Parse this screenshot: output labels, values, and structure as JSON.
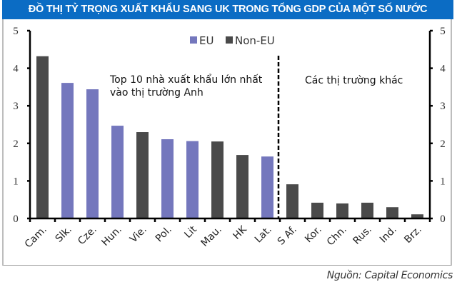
{
  "header": {
    "title": "ĐỒ THỊ TỶ TRỌNG XUẤT KHẨU SANG UK TRONG TỔNG GDP CỦA MỘT SỐ NƯỚC"
  },
  "source": "Nguồn: Capital Economics",
  "colors": {
    "eu": "#7477bd",
    "non_eu": "#4a4a4a",
    "header": "#0b6cc4"
  },
  "chart_data": {
    "type": "bar",
    "title": "ĐỒ THỊ TỶ TRỌNG XUẤT KHẨU SANG UK TRONG TỔNG GDP CỦA MỘT SỐ NƯỚC",
    "xlabel": "",
    "ylabel": "",
    "ylim": [
      0,
      5
    ],
    "yticks": [
      0,
      1,
      2,
      3,
      4,
      5
    ],
    "grid": false,
    "legend": {
      "position": "top-center",
      "entries": [
        "EU",
        "Non-EU"
      ]
    },
    "categories": [
      "Cam.",
      "Slk.",
      "Cze.",
      "Hun.",
      "Vie.",
      "Pol.",
      "Lit",
      "Mau.",
      "HK",
      "Lat.",
      "S Af.",
      "Kor.",
      "Chn.",
      "Rus.",
      "Ind.",
      "Brz."
    ],
    "values": [
      4.32,
      3.61,
      3.44,
      2.47,
      2.3,
      2.11,
      2.06,
      2.05,
      1.69,
      1.65,
      0.91,
      0.42,
      0.4,
      0.42,
      0.3,
      0.11
    ],
    "groups": [
      "Non-EU",
      "EU",
      "EU",
      "EU",
      "Non-EU",
      "EU",
      "EU",
      "Non-EU",
      "Non-EU",
      "EU",
      "Non-EU",
      "Non-EU",
      "Non-EU",
      "Non-EU",
      "Non-EU",
      "Non-EU"
    ],
    "series": [
      {
        "name": "EU",
        "values": [
          null,
          3.61,
          3.44,
          2.47,
          null,
          2.11,
          2.06,
          null,
          null,
          1.65,
          null,
          null,
          null,
          null,
          null,
          null
        ]
      },
      {
        "name": "Non-EU",
        "values": [
          4.32,
          null,
          null,
          null,
          2.3,
          null,
          null,
          2.05,
          1.69,
          null,
          0.91,
          0.42,
          0.4,
          0.42,
          0.3,
          0.11
        ]
      }
    ],
    "annotations": [
      {
        "text": "Top 10 nhà xuất khẩu lớn nhất",
        "line": 1
      },
      {
        "text": "vào thị trường Anh",
        "line": 2
      },
      {
        "text": "Các thị trường khác"
      }
    ],
    "divider": {
      "style": "dashed",
      "between": [
        "Lat.",
        "S Af."
      ]
    }
  },
  "annotations": {
    "top10_line1": "Top 10 nhà xuất khẩu lớn nhất",
    "top10_line2": "vào thị trường Anh",
    "others": "Các thị trường khác"
  },
  "legend": {
    "eu": "EU",
    "non_eu": "Non-EU"
  }
}
